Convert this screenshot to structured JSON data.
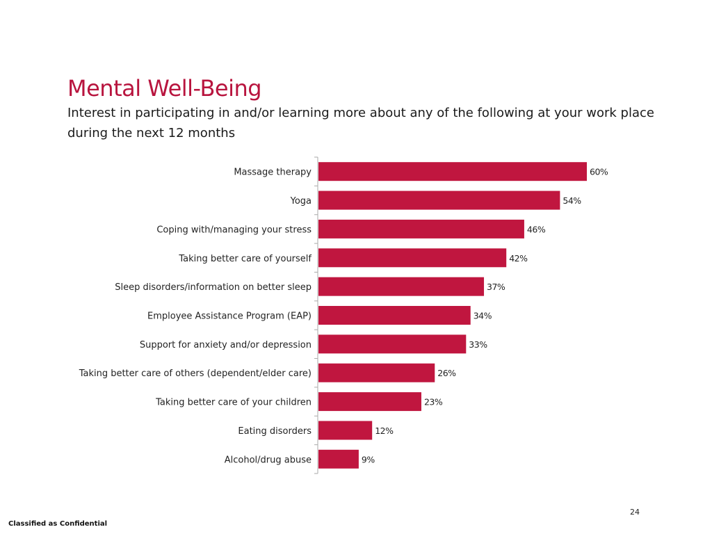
{
  "slide": {
    "title": "Mental Well-Being",
    "subtitle": "Interest in participating in and/or learning more about any of the following at your work place during the next 12 months",
    "page_number": "24",
    "footer": "Classified as Confidential",
    "accent_color": "#b8143e",
    "bar_color": "#c0163f"
  },
  "chart_data": {
    "type": "bar",
    "orientation": "horizontal",
    "title": "",
    "xlabel": "",
    "ylabel": "",
    "xlim": [
      0,
      60
    ],
    "grid": false,
    "legend": "none",
    "categories": [
      "Massage therapy",
      "Yoga",
      "Coping with/managing your stress",
      "Taking better care of yourself",
      "Sleep disorders/information on better sleep",
      "Employee Assistance Program (EAP)",
      "Support for anxiety and/or depression",
      "Taking better care of others (dependent/elder care)",
      "Taking better care of your children",
      "Eating disorders",
      "Alcohol/drug abuse"
    ],
    "values": [
      60,
      54,
      46,
      42,
      37,
      34,
      33,
      26,
      23,
      12,
      9
    ],
    "value_labels": [
      "60%",
      "54%",
      "46%",
      "42%",
      "37%",
      "34%",
      "33%",
      "26%",
      "23%",
      "12%",
      "9%"
    ]
  }
}
